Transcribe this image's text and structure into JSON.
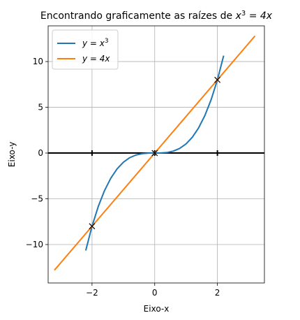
{
  "chart_data": {
    "type": "line",
    "title": "Encontrando graficamente as raízes de x³ = 4x",
    "xlabel": "Eixo-x",
    "ylabel": "Eixo-y",
    "xlim": [
      -3.4,
      3.5
    ],
    "ylim": [
      -14.2,
      13.9
    ],
    "xticks": [
      -2,
      0,
      2
    ],
    "yticks": [
      -10,
      -5,
      0,
      5,
      10
    ],
    "xtick_labels": [
      "−2",
      "0",
      "2"
    ],
    "ytick_labels": [
      "−10",
      "−5",
      "0",
      "5",
      "10"
    ],
    "grid": true,
    "legend_position": "top-left",
    "series": [
      {
        "name": "y = x³",
        "legend_main": "y = x",
        "legend_sup": "3",
        "color": "#1f77b4",
        "x": [
          -2.2,
          -2.0,
          -1.8,
          -1.6,
          -1.4,
          -1.2,
          -1.0,
          -0.8,
          -0.6,
          -0.4,
          -0.2,
          0.0,
          0.2,
          0.4,
          0.6,
          0.8,
          1.0,
          1.2,
          1.4,
          1.6,
          1.8,
          2.0,
          2.2
        ],
        "y": [
          -10.648,
          -8.0,
          -5.832,
          -4.096,
          -2.744,
          -1.728,
          -1.0,
          -0.512,
          -0.216,
          -0.064,
          -0.008,
          0.0,
          0.008,
          0.064,
          0.216,
          0.512,
          1.0,
          1.728,
          2.744,
          4.096,
          5.832,
          8.0,
          10.648
        ]
      },
      {
        "name": "y = 4x",
        "legend_main": "y = 4x",
        "legend_sup": "",
        "color": "#ff7f0e",
        "x": [
          -3.2,
          3.2
        ],
        "y": [
          -12.8,
          12.8
        ]
      }
    ],
    "roots": {
      "x": [
        -2,
        0,
        2
      ],
      "y": [
        -8,
        0,
        8
      ],
      "marker": "x"
    },
    "zero_line_ticks": [
      -2,
      0,
      2
    ]
  }
}
